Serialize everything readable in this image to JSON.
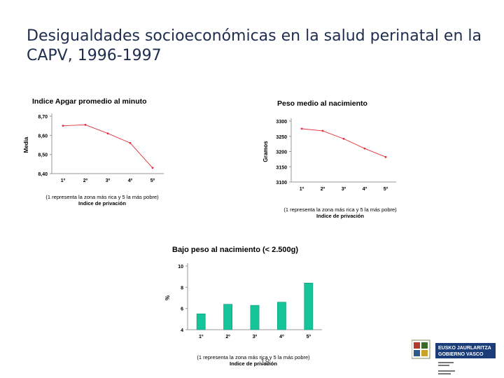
{
  "title": "Desigualdades socioeconómicas en la salud perinatal en la CAPV, 1996-1997",
  "page_number": "18",
  "colors": {
    "line": "#e0303a",
    "bar": "#16c49a",
    "bar_stroke": "#0e8f70",
    "title": "#1f2d4d"
  },
  "chart_data": [
    {
      "type": "line",
      "title": "Indice Apgar promedio al minuto",
      "ylabel": "Media",
      "xlabel": "Indice de privación",
      "note": "(1 representa la zona más rica y 5 la más pobre)",
      "categories": [
        "1º",
        "2º",
        "3º",
        "4º",
        "5º"
      ],
      "y_ticks": [
        "8,40",
        "8,50",
        "8,60",
        "8,70"
      ],
      "ylim": [
        8.4,
        8.7
      ],
      "values": [
        8.65,
        8.655,
        8.61,
        8.56,
        8.43
      ]
    },
    {
      "type": "line",
      "title": "Peso medio al nacimiento",
      "ylabel": "Gramos",
      "xlabel": "Indice de privación",
      "note": "(1 representa la zona más rica y 5 la más pobre)",
      "categories": [
        "1º",
        "2º",
        "3º",
        "4º",
        "5º"
      ],
      "y_ticks": [
        "3100",
        "3150",
        "3200",
        "3250",
        "3300"
      ],
      "ylim": [
        3100,
        3300
      ],
      "values": [
        3275,
        3268,
        3242,
        3210,
        3182
      ]
    },
    {
      "type": "bar",
      "title": "Bajo peso al nacimiento (< 2.500g)",
      "ylabel": "%",
      "xlabel": "Indice de privación",
      "note": "(1 representa la zona más rica y 5 la más pobre)",
      "categories": [
        "1º",
        "2º",
        "3º",
        "4º",
        "5º"
      ],
      "y_ticks": [
        "4",
        "6",
        "8",
        "10"
      ],
      "ylim": [
        4,
        10
      ],
      "values": [
        5.5,
        6.4,
        6.3,
        6.6,
        8.4
      ]
    }
  ],
  "logo": {
    "line1": "EUSKO JAURLARITZA",
    "line2": "GOBIERNO VASCO"
  }
}
